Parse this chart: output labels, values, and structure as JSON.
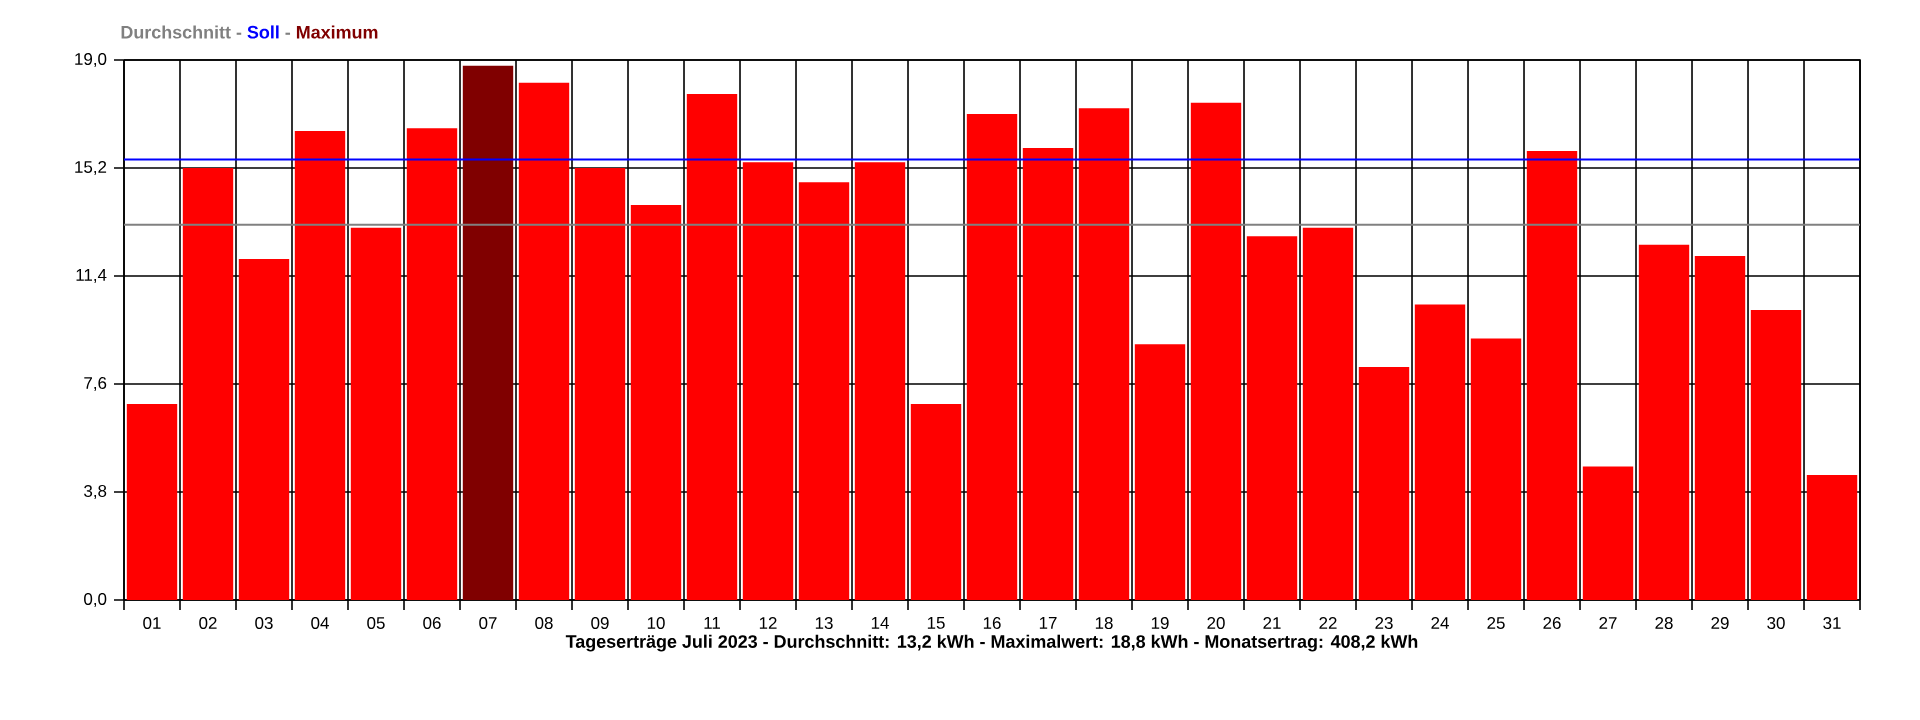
{
  "chart_data": {
    "type": "bar",
    "xlabel": "Tageserträge Juli 2023 - Durchschnitt: 13,2 kWh - Maximalwert: 18,8 kWh - Monatsertrag: 408,2 kWh",
    "categories": [
      "01",
      "02",
      "03",
      "04",
      "05",
      "06",
      "07",
      "08",
      "09",
      "10",
      "11",
      "12",
      "13",
      "14",
      "15",
      "16",
      "17",
      "18",
      "19",
      "20",
      "21",
      "22",
      "23",
      "24",
      "25",
      "26",
      "27",
      "28",
      "29",
      "30",
      "31"
    ],
    "values": [
      6.9,
      15.2,
      12.0,
      16.5,
      13.1,
      16.6,
      18.8,
      18.2,
      15.2,
      13.9,
      17.8,
      15.4,
      14.7,
      15.4,
      6.9,
      17.1,
      15.9,
      17.3,
      9.0,
      17.5,
      12.8,
      13.1,
      8.2,
      10.4,
      9.2,
      15.8,
      4.7,
      12.5,
      12.1,
      10.2,
      4.4
    ],
    "colors": [
      "#ff0000",
      "#ff0000",
      "#ff0000",
      "#ff0000",
      "#ff0000",
      "#ff0000",
      "#800000",
      "#ff0000",
      "#ff0000",
      "#ff0000",
      "#ff0000",
      "#ff0000",
      "#ff0000",
      "#ff0000",
      "#ff0000",
      "#ff0000",
      "#ff0000",
      "#ff0000",
      "#ff0000",
      "#ff0000",
      "#ff0000",
      "#ff0000",
      "#ff0000",
      "#ff0000",
      "#ff0000",
      "#ff0000",
      "#ff0000",
      "#ff0000",
      "#ff0000",
      "#ff0000",
      "#ff0000"
    ],
    "ylim": [
      0,
      19
    ],
    "yticks": [
      {
        "value": 0,
        "label": "0,0"
      },
      {
        "value": 3.8,
        "label": "3,8"
      },
      {
        "value": 7.6,
        "label": "7,6"
      },
      {
        "value": 11.4,
        "label": "11,4"
      },
      {
        "value": 15.2,
        "label": "15,2"
      },
      {
        "value": 19,
        "label": "19,0"
      }
    ],
    "grid": true,
    "ref_lines": [
      {
        "axis": "y",
        "value": 13.2,
        "label": "Durchschnitt",
        "color": "#808080"
      },
      {
        "axis": "y",
        "value": 15.5,
        "label": "Soll",
        "color": "#0000ff"
      }
    ],
    "annotations": [
      "-",
      "-",
      "Maximum"
    ]
  }
}
